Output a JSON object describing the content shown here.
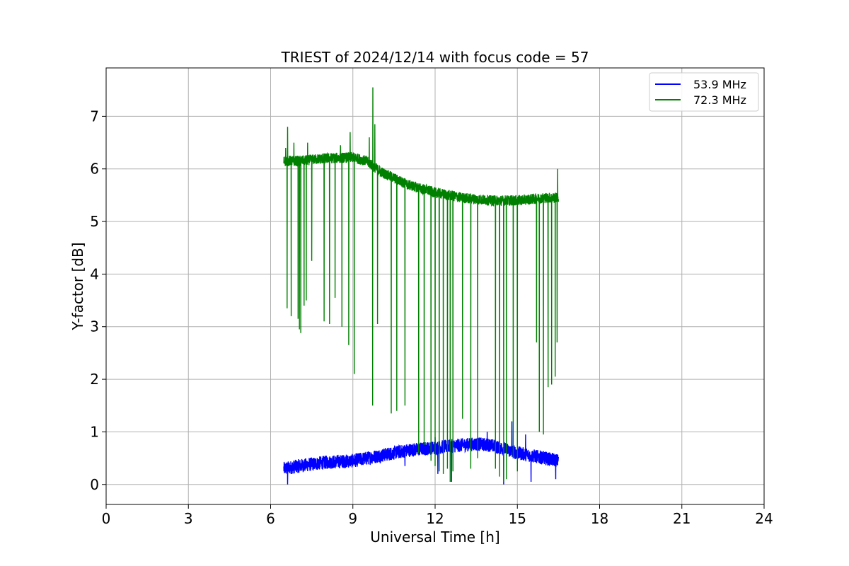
{
  "chart_data": {
    "type": "line",
    "title": "TRIEST of 2024/12/14 with focus code = 57",
    "xlabel": "Universal Time [h]",
    "ylabel": "Y-factor [dB]",
    "xlim": [
      0,
      24
    ],
    "ylim": [
      -0.38,
      7.92
    ],
    "xticks": [
      0,
      3,
      6,
      9,
      12,
      15,
      18,
      21,
      24
    ],
    "yticks": [
      0,
      1,
      2,
      3,
      4,
      5,
      6,
      7
    ],
    "grid": true,
    "legend_position": "top-right",
    "series": [
      {
        "name": "53.9 MHz",
        "color": "#0000ff",
        "x_range": [
          6.48,
          16.5
        ],
        "trend_x": [
          6.5,
          7.0,
          8.0,
          9.0,
          10.0,
          11.0,
          12.0,
          13.0,
          13.5,
          14.0,
          15.0,
          16.0,
          16.5
        ],
        "trend_y": [
          0.3,
          0.35,
          0.42,
          0.45,
          0.55,
          0.65,
          0.7,
          0.75,
          0.77,
          0.75,
          0.6,
          0.5,
          0.45
        ],
        "band_halfwidth": 0.13,
        "low_spikes": [
          [
            6.62,
            0.0
          ],
          [
            10.9,
            0.35
          ],
          [
            12.1,
            0.2
          ],
          [
            12.6,
            0.05
          ],
          [
            14.5,
            0.0
          ],
          [
            15.5,
            0.05
          ],
          [
            16.4,
            0.1
          ]
        ],
        "high_spikes": [
          [
            12.0,
            0.9
          ],
          [
            13.9,
            1.0
          ],
          [
            14.8,
            1.2
          ],
          [
            15.3,
            0.95
          ]
        ]
      },
      {
        "name": "72.3 MHz",
        "color": "#008000",
        "x_range": [
          6.48,
          16.5
        ],
        "trend_x": [
          6.5,
          7.0,
          8.0,
          9.0,
          9.5,
          10.0,
          11.0,
          12.0,
          13.0,
          14.0,
          15.0,
          16.0,
          16.5
        ],
        "trend_y": [
          6.15,
          6.15,
          6.2,
          6.22,
          6.15,
          5.95,
          5.7,
          5.55,
          5.45,
          5.4,
          5.4,
          5.45,
          5.45
        ],
        "band_halfwidth": 0.1,
        "high_spikes": [
          [
            6.55,
            6.4
          ],
          [
            6.62,
            6.8
          ],
          [
            6.85,
            6.5
          ],
          [
            7.35,
            6.5
          ],
          [
            8.55,
            6.45
          ],
          [
            8.9,
            6.7
          ],
          [
            9.6,
            6.6
          ],
          [
            9.73,
            7.55
          ],
          [
            9.8,
            6.85
          ],
          [
            16.47,
            6.0
          ]
        ],
        "dips": [
          [
            6.6,
            3.35
          ],
          [
            6.75,
            3.2
          ],
          [
            6.85,
            3.05
          ],
          [
            7.0,
            3.15
          ],
          [
            7.05,
            2.95
          ],
          [
            7.1,
            2.88
          ],
          [
            7.22,
            3.4
          ],
          [
            7.3,
            3.5
          ],
          [
            7.5,
            4.25
          ],
          [
            7.95,
            3.1
          ],
          [
            8.15,
            3.05
          ],
          [
            8.35,
            3.55
          ],
          [
            8.6,
            3.0
          ],
          [
            8.85,
            2.65
          ],
          [
            9.05,
            2.1
          ],
          [
            9.6,
            1.7
          ],
          [
            9.72,
            1.5
          ],
          [
            9.9,
            3.05
          ],
          [
            10.4,
            1.35
          ],
          [
            10.6,
            1.4
          ],
          [
            10.9,
            1.5
          ],
          [
            11.4,
            0.6
          ],
          [
            11.6,
            0.75
          ],
          [
            11.85,
            0.45
          ],
          [
            12.0,
            0.35
          ],
          [
            12.15,
            0.25
          ],
          [
            12.3,
            0.2
          ],
          [
            12.45,
            0.3
          ],
          [
            12.55,
            0.05
          ],
          [
            12.65,
            0.25
          ],
          [
            13.0,
            1.25
          ],
          [
            13.3,
            0.3
          ],
          [
            13.55,
            0.5
          ],
          [
            14.2,
            0.3
          ],
          [
            14.35,
            0.15
          ],
          [
            14.5,
            0.05
          ],
          [
            14.6,
            0.1
          ],
          [
            14.85,
            0.5
          ],
          [
            15.0,
            0.25
          ],
          [
            15.7,
            2.7
          ],
          [
            15.8,
            1.0
          ],
          [
            15.95,
            0.95
          ],
          [
            16.12,
            1.85
          ],
          [
            16.25,
            1.9
          ],
          [
            16.38,
            2.05
          ],
          [
            16.45,
            2.7
          ]
        ]
      }
    ]
  }
}
